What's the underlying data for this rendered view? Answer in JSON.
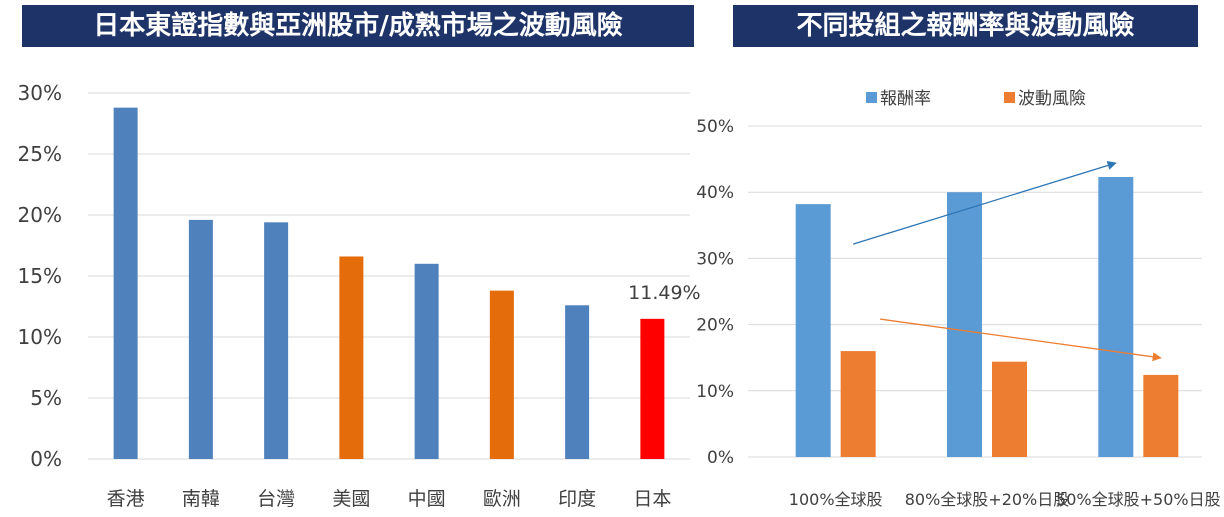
{
  "left_chart_title": "日本東證指數與亞洲股市/成熟市場之波動風險",
  "right_chart_title": "不同投組之報酬率與波動風險",
  "chart_data": [
    {
      "type": "bar",
      "title": "日本東證指數與亞洲股市/成熟市場之波動風險",
      "categories": [
        "香港",
        "南韓",
        "台灣",
        "美國",
        "中國",
        "歐洲",
        "印度",
        "日本"
      ],
      "values": [
        28.8,
        19.6,
        19.4,
        16.6,
        16.0,
        13.8,
        12.6,
        11.49
      ],
      "bar_colors": [
        "#4f81bd",
        "#4f81bd",
        "#4f81bd",
        "#e46c0a",
        "#4f81bd",
        "#e46c0a",
        "#4f81bd",
        "#ff0000"
      ],
      "ylim": [
        0,
        30
      ],
      "yticks": [
        "0%",
        "5%",
        "10%",
        "15%",
        "20%",
        "25%",
        "30%"
      ],
      "data_labels": [
        {
          "category": "日本",
          "text": "11.49%"
        }
      ],
      "grid": true,
      "legend": "none"
    },
    {
      "type": "bar",
      "title": "不同投組之報酬率與波動風險",
      "categories": [
        "100%全球股",
        "80%全球股+20%日股",
        "50%全球股+50%日股"
      ],
      "series": [
        {
          "name": "報酬率",
          "color": "#5b9bd5",
          "values": [
            38.2,
            40.0,
            42.3
          ]
        },
        {
          "name": "波動風險",
          "color": "#ed7d31",
          "values": [
            16.0,
            14.4,
            12.4
          ]
        }
      ],
      "ylim": [
        0,
        50
      ],
      "yticks": [
        "0%",
        "10%",
        "20%",
        "30%",
        "40%",
        "50%"
      ],
      "grid": true,
      "legend": "top-center",
      "annotations": [
        "upward trend arrow over 報酬率",
        "downward trend arrow over 波動風險"
      ]
    }
  ]
}
